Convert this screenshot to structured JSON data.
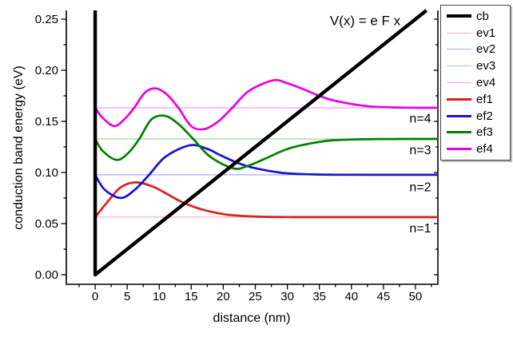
{
  "chart_data": {
    "type": "line",
    "title": "",
    "xlabel": "distance (nm)",
    "ylabel": "conduction band energy (eV)",
    "xlim": [
      -4.5,
      53.5
    ],
    "ylim": [
      -0.0094,
      0.2586
    ],
    "grid": false,
    "legend_position": "outside-top-right",
    "x_ticks": {
      "values": [
        0,
        5,
        10,
        15,
        20,
        25,
        30,
        35,
        40,
        45,
        50
      ],
      "labels": [
        "0",
        "5",
        "10",
        "15",
        "20",
        "25",
        "30",
        "35",
        "40",
        "45",
        "50"
      ],
      "minor": [
        -2.5,
        2.5,
        7.5,
        12.5,
        17.5,
        22.5,
        27.5,
        32.5,
        37.5,
        42.5,
        47.5,
        52.5
      ]
    },
    "y_ticks": {
      "values": [
        0.0,
        0.05,
        0.1,
        0.15,
        0.2,
        0.25
      ],
      "labels": [
        "0.00",
        "0.05",
        "0.10",
        "0.15",
        "0.20",
        "0.25"
      ],
      "minor": [
        0.025,
        0.075,
        0.125,
        0.175,
        0.225
      ]
    },
    "annotations": [
      {
        "text": "V(x) = e F x",
        "x": 42.15,
        "y": 0.2484,
        "size": 17,
        "anchor": "middle"
      },
      {
        "text": "n=4",
        "x": 50.76,
        "y": 0.1531,
        "size": 16,
        "anchor": "middle"
      },
      {
        "text": "n=3",
        "x": 50.76,
        "y": 0.1223,
        "size": 16,
        "anchor": "middle"
      },
      {
        "text": "n=2",
        "x": 50.76,
        "y": 0.0859,
        "size": 16,
        "anchor": "middle"
      },
      {
        "text": "n=1",
        "x": 50.76,
        "y": 0.0457,
        "size": 16,
        "anchor": "middle"
      }
    ],
    "series": [
      {
        "name": "cb",
        "label": "cb",
        "color": "#000000",
        "width": 4.4,
        "smooth": false,
        "points": [
          [
            0,
            0.2586
          ],
          [
            0,
            0
          ],
          [
            51.72,
            0.2586
          ]
        ]
      },
      {
        "name": "ev1",
        "label": "ev1",
        "color": "#ffb0b8",
        "width": 1.2,
        "smooth": false,
        "points": [
          [
            0,
            0.0563
          ],
          [
            53.5,
            0.0563
          ]
        ]
      },
      {
        "name": "ev2",
        "label": "ev2",
        "color": "#a8a8f8",
        "width": 1.2,
        "smooth": false,
        "points": [
          [
            0,
            0.0977
          ],
          [
            53.5,
            0.0977
          ]
        ]
      },
      {
        "name": "ev3",
        "label": "ev3",
        "color": "#a0d4a0",
        "width": 1.2,
        "smooth": false,
        "points": [
          [
            0,
            0.1328
          ],
          [
            53.5,
            0.1328
          ]
        ]
      },
      {
        "name": "ev4",
        "label": "ev4",
        "color": "#fa9bfa",
        "width": 1.2,
        "smooth": false,
        "points": [
          [
            0,
            0.1633
          ],
          [
            53.5,
            0.1633
          ]
        ]
      },
      {
        "name": "ef1",
        "label": "ef1",
        "color": "#dc1e1e",
        "width": 2.7,
        "smooth": true,
        "points": [
          [
            0,
            0.0563
          ],
          [
            2,
            0.0718
          ],
          [
            4,
            0.0855
          ],
          [
            6.35,
            0.0903
          ],
          [
            9,
            0.0862
          ],
          [
            11.25,
            0.0788
          ],
          [
            13.5,
            0.0712
          ],
          [
            16.1,
            0.0649
          ],
          [
            18.5,
            0.0611
          ],
          [
            20.9,
            0.0585
          ],
          [
            25.7,
            0.0567
          ],
          [
            30,
            0.0564
          ],
          [
            36,
            0.0563
          ],
          [
            53.5,
            0.0563
          ]
        ]
      },
      {
        "name": "ef2",
        "label": "ef2",
        "color": "#1414d2",
        "width": 2.7,
        "smooth": true,
        "points": [
          [
            0,
            0.0977
          ],
          [
            1.5,
            0.0831
          ],
          [
            4.04,
            0.0751
          ],
          [
            6.3,
            0.0837
          ],
          [
            8.42,
            0.0977
          ],
          [
            11,
            0.1155
          ],
          [
            14.77,
            0.1266
          ],
          [
            17.5,
            0.1231
          ],
          [
            19.55,
            0.1169
          ],
          [
            22,
            0.11
          ],
          [
            24.4,
            0.105
          ],
          [
            29.2,
            0.0996
          ],
          [
            34,
            0.0981
          ],
          [
            38,
            0.0978
          ],
          [
            44,
            0.0977
          ],
          [
            53.5,
            0.0977
          ]
        ]
      },
      {
        "name": "ef3",
        "label": "ef3",
        "color": "#008000",
        "width": 2.7,
        "smooth": true,
        "points": [
          [
            0,
            0.1328
          ],
          [
            1.2,
            0.1209
          ],
          [
            3.37,
            0.1123
          ],
          [
            5.2,
            0.1193
          ],
          [
            6.89,
            0.1328
          ],
          [
            8.8,
            0.152
          ],
          [
            10.93,
            0.1554
          ],
          [
            13,
            0.1474
          ],
          [
            15.31,
            0.1328
          ],
          [
            18,
            0.1152
          ],
          [
            21.66,
            0.1039
          ],
          [
            24,
            0.1069
          ],
          [
            26.56,
            0.1136
          ],
          [
            29,
            0.1205
          ],
          [
            31.4,
            0.1255
          ],
          [
            36.2,
            0.1309
          ],
          [
            41,
            0.1324
          ],
          [
            46,
            0.1327
          ],
          [
            53.5,
            0.1328
          ]
        ]
      },
      {
        "name": "ef4",
        "label": "ef4",
        "color": "#e800e8",
        "width": 2.7,
        "smooth": true,
        "points": [
          [
            0,
            0.1633
          ],
          [
            1.2,
            0.1533
          ],
          [
            3,
            0.1454
          ],
          [
            4.6,
            0.1523
          ],
          [
            6.09,
            0.1633
          ],
          [
            7.8,
            0.1783
          ],
          [
            9.46,
            0.1823
          ],
          [
            11.2,
            0.1763
          ],
          [
            12.99,
            0.1633
          ],
          [
            15,
            0.1453
          ],
          [
            17.03,
            0.1424
          ],
          [
            19.2,
            0.1498
          ],
          [
            21.41,
            0.1633
          ],
          [
            24,
            0.1798
          ],
          [
            27.76,
            0.1901
          ],
          [
            30,
            0.1873
          ],
          [
            32.66,
            0.1811
          ],
          [
            35,
            0.1749
          ],
          [
            37.5,
            0.1701
          ],
          [
            42.3,
            0.165
          ],
          [
            47.1,
            0.1636
          ],
          [
            51,
            0.1633
          ],
          [
            53.5,
            0.1633
          ]
        ]
      }
    ]
  }
}
